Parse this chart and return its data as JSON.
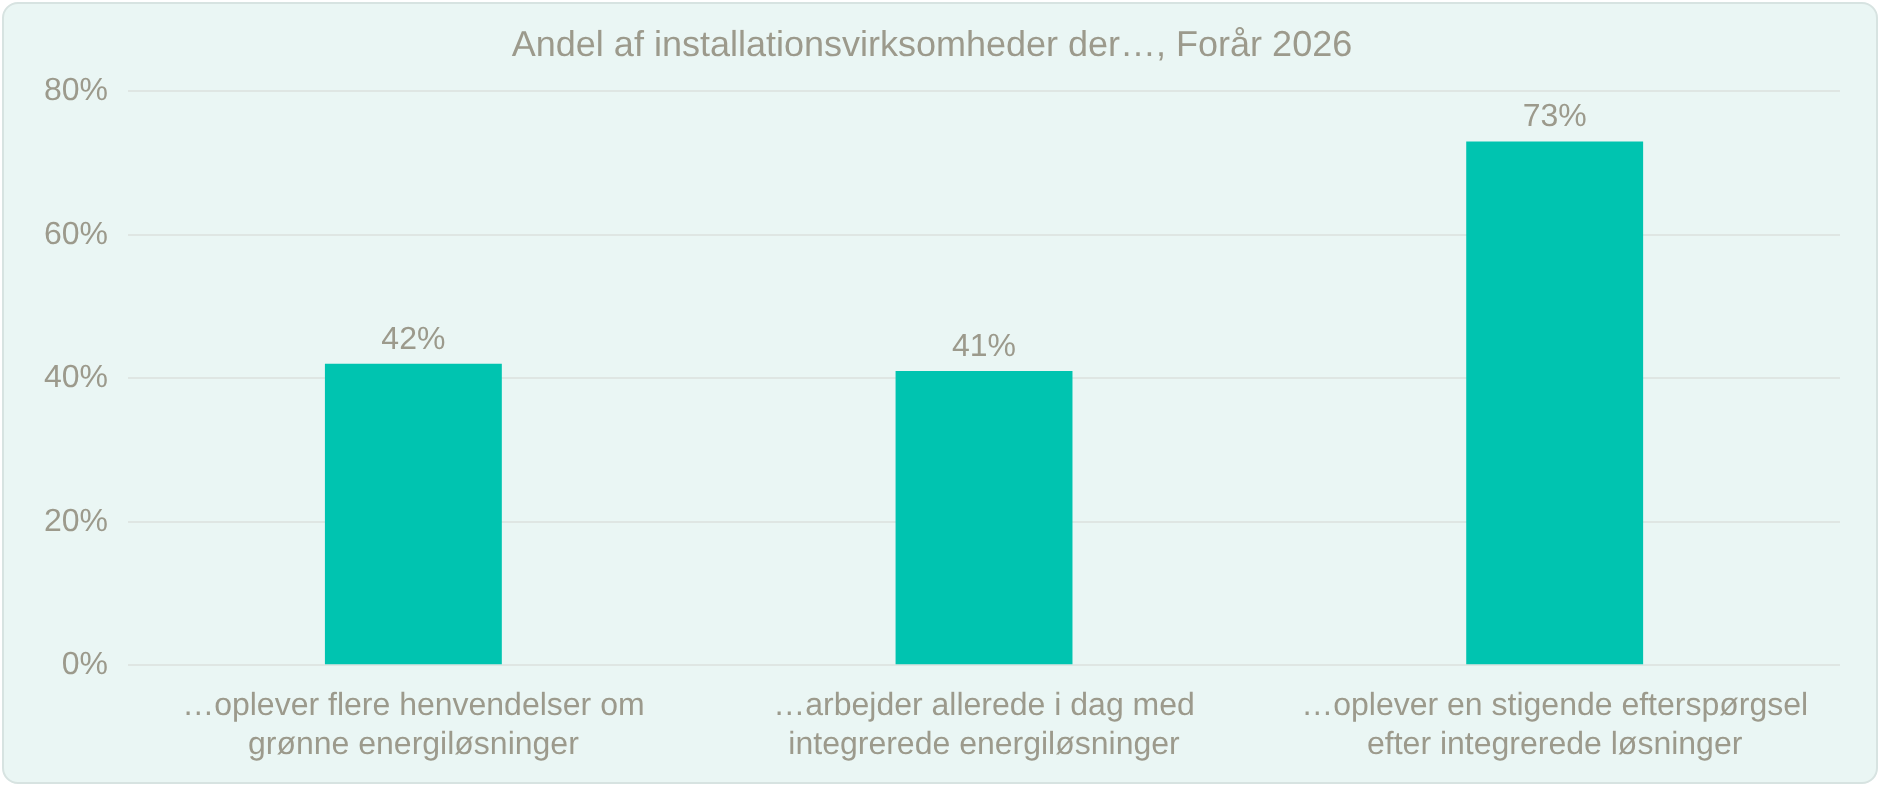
{
  "chart_data": {
    "type": "bar",
    "title": "Andel af installationsvirksomheder der…, Forår 2026",
    "categories": [
      "…oplever flere henvendelser om grønne energiløsninger",
      "…arbejder allerede i dag med integrerede energiløsninger",
      "…oplever en stigende efterspørgsel efter integrerede løsninger"
    ],
    "values": [
      42,
      41,
      73
    ],
    "value_labels": [
      "42%",
      "41%",
      "73%"
    ],
    "color": "#00c4b0",
    "ylim": [
      0,
      80
    ],
    "yticks": [
      {
        "value": 0,
        "label": "0%"
      },
      {
        "value": 20,
        "label": "20%"
      },
      {
        "value": 40,
        "label": "40%"
      },
      {
        "value": 60,
        "label": "60%"
      },
      {
        "value": 80,
        "label": "80%"
      }
    ],
    "grid": "y",
    "legend": false
  }
}
